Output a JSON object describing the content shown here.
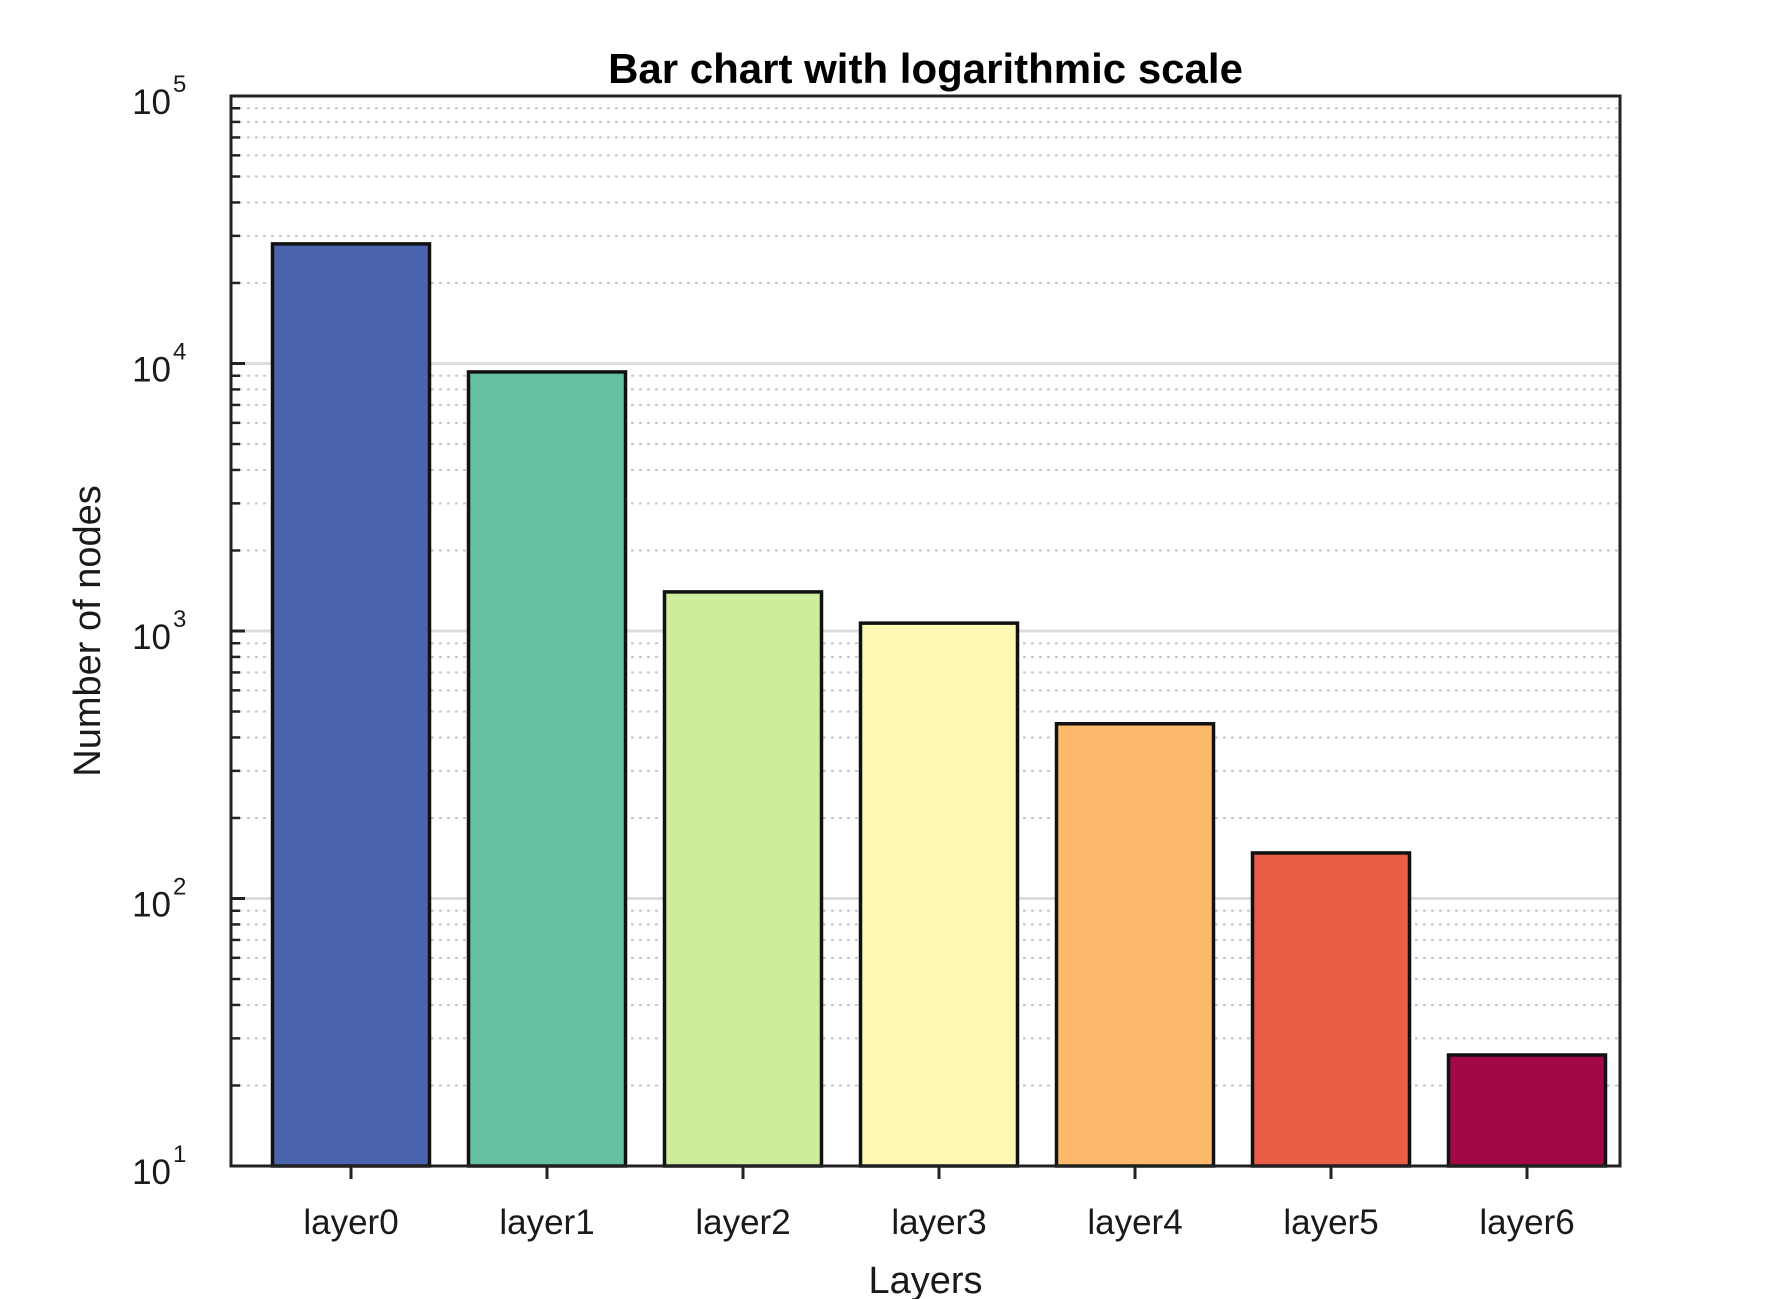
{
  "chart_data": {
    "type": "bar",
    "title": "Bar chart with logarithmic scale",
    "xlabel": "Layers",
    "ylabel": "Number of nodes",
    "categories": [
      "layer0",
      "layer1",
      "layer2",
      "layer3",
      "layer4",
      "layer5",
      "layer6"
    ],
    "values": [
      28000,
      9300,
      1400,
      1070,
      450,
      148,
      26
    ],
    "colors": [
      "#4a65ad",
      "#66c1a4",
      "#cfeb9c",
      "#fef8b5",
      "#fdba6c",
      "#e85e47",
      "#a20845"
    ],
    "ylog": true,
    "ylim": [
      10,
      100000
    ],
    "yticks": [
      {
        "base": "10",
        "exp": "1"
      },
      {
        "base": "10",
        "exp": "2"
      },
      {
        "base": "10",
        "exp": "3"
      },
      {
        "base": "10",
        "exp": "4"
      },
      {
        "base": "10",
        "exp": "5"
      }
    ],
    "grid": true,
    "legend": "none"
  }
}
